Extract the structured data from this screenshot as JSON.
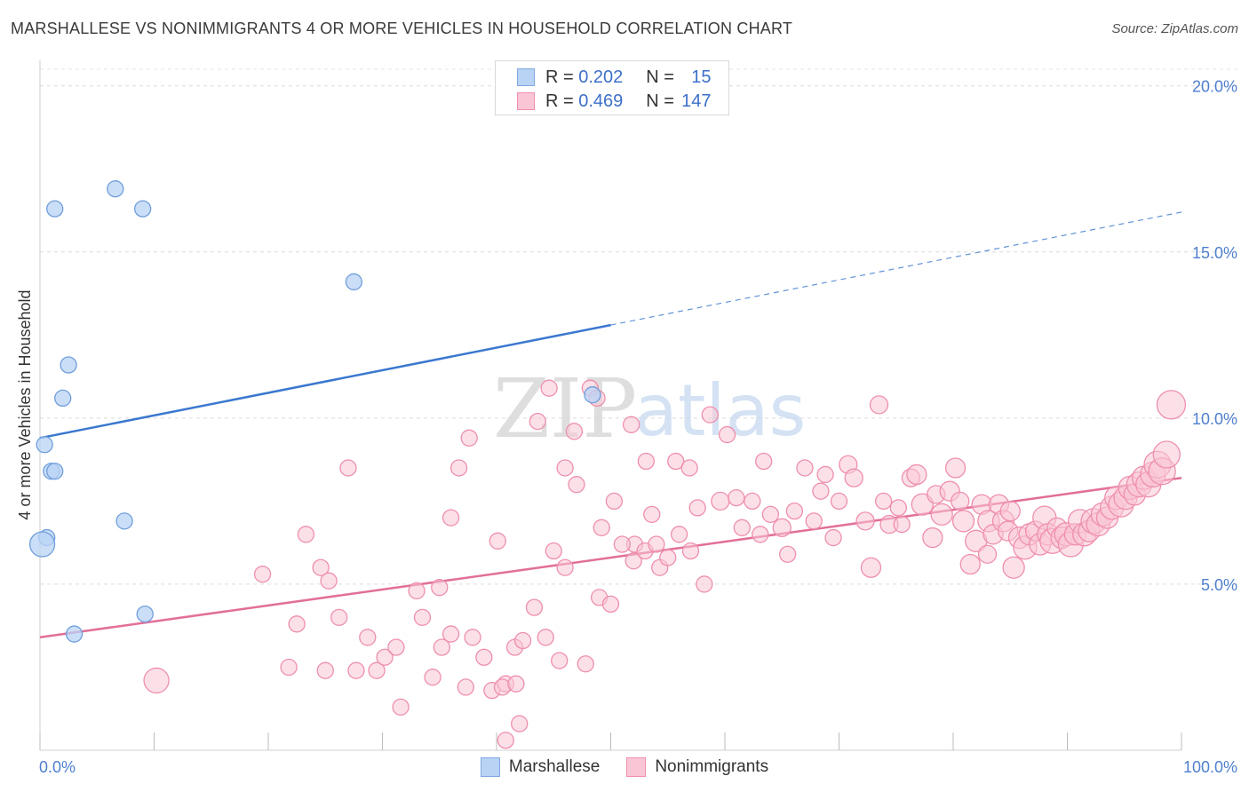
{
  "title": "MARSHALLESE VS NONIMMIGRANTS 4 OR MORE VEHICLES IN HOUSEHOLD CORRELATION CHART",
  "source": "Source: ZipAtlas.com",
  "watermark": {
    "zip": "ZIP",
    "atlas": "atlas"
  },
  "stats": [
    {
      "r_label": "R = ",
      "r_value": "0.202",
      "n_label": "N = ",
      "n_value": "15",
      "fill": "#b9d3f5",
      "stroke": "#7fa8e0"
    },
    {
      "r_label": "R = ",
      "r_value": "0.469",
      "n_label": "N = ",
      "n_value": "147",
      "fill": "#fac6d6",
      "stroke": "#ee8fad"
    }
  ],
  "legend": [
    {
      "label": "Marshallese",
      "fill": "#b9d3f5",
      "stroke": "#7fa8e0"
    },
    {
      "label": "Nonimmigrants",
      "fill": "#fac6d6",
      "stroke": "#ee8fad"
    }
  ],
  "chart_data": {
    "type": "scatter",
    "ylabel": "4 or more Vehicles in Household",
    "xlim": [
      0,
      100
    ],
    "ylim": [
      0,
      20.5
    ],
    "x_tick_labels": [
      "0.0%",
      "100.0%"
    ],
    "y_ticks": [
      5,
      10,
      15,
      20
    ],
    "y_tick_labels": [
      "5.0%",
      "10.0%",
      "15.0%",
      "20.0%"
    ],
    "grid": true,
    "colors": {
      "blue": "#3b78cf",
      "pink": "#e26f99",
      "tick_text": "#4f7fce"
    },
    "series": [
      {
        "name": "Marshallese",
        "fill": "#b9d3f5",
        "stroke": "#6f9edb",
        "trend": {
          "x0": 0,
          "y0": 9.4,
          "x1": 50,
          "y1": 12.8,
          "dash_x1": 100,
          "dash_y1": 16.2
        },
        "points": [
          [
            1.3,
            16.3,
            9
          ],
          [
            6.6,
            16.9,
            9
          ],
          [
            9.0,
            16.3,
            9
          ],
          [
            27.5,
            14.1,
            9
          ],
          [
            2.5,
            11.6,
            9
          ],
          [
            2.0,
            10.6,
            9
          ],
          [
            0.4,
            9.2,
            9
          ],
          [
            1.0,
            8.4,
            9
          ],
          [
            1.3,
            8.4,
            9
          ],
          [
            7.4,
            6.9,
            9
          ],
          [
            0.6,
            6.4,
            9
          ],
          [
            0.2,
            6.2,
            14
          ],
          [
            9.2,
            4.1,
            9
          ],
          [
            3.0,
            3.5,
            9
          ],
          [
            48.4,
            10.7,
            9
          ]
        ]
      },
      {
        "name": "Nonimmigrants",
        "fill": "#fac6d6",
        "stroke": "#ee8fad",
        "trend": {
          "x0": 0,
          "y0": 3.4,
          "x1": 100,
          "y1": 8.2
        },
        "points": [
          [
            10.2,
            2.1,
            14
          ],
          [
            27.0,
            8.5,
            9
          ],
          [
            36.7,
            8.5,
            9
          ],
          [
            37.6,
            9.4,
            9
          ],
          [
            40.1,
            6.3,
            9
          ],
          [
            36.0,
            7.0,
            9
          ],
          [
            43.6,
            9.9,
            9
          ],
          [
            44.6,
            10.9,
            9
          ],
          [
            46.8,
            9.6,
            9
          ],
          [
            48.2,
            10.9,
            9
          ],
          [
            48.8,
            10.6,
            9
          ],
          [
            46.0,
            8.5,
            9
          ],
          [
            50.3,
            7.5,
            9
          ],
          [
            49.2,
            6.7,
            9
          ],
          [
            51.8,
            9.8,
            9
          ],
          [
            53.1,
            8.7,
            9
          ],
          [
            53.6,
            7.1,
            9
          ],
          [
            52.1,
            6.2,
            9
          ],
          [
            54.3,
            5.5,
            9
          ],
          [
            55.7,
            8.7,
            9
          ],
          [
            56.9,
            8.5,
            9
          ],
          [
            57.6,
            7.3,
            9
          ],
          [
            58.2,
            5.0,
            9
          ],
          [
            58.7,
            10.1,
            9
          ],
          [
            59.6,
            7.5,
            10
          ],
          [
            60.2,
            9.5,
            9
          ],
          [
            61.0,
            7.6,
            9
          ],
          [
            61.5,
            6.7,
            9
          ],
          [
            62.4,
            7.5,
            9
          ],
          [
            63.1,
            6.5,
            9
          ],
          [
            63.4,
            8.7,
            9
          ],
          [
            64.0,
            7.1,
            9
          ],
          [
            65.0,
            6.7,
            10
          ],
          [
            65.5,
            5.9,
            9
          ],
          [
            66.1,
            7.2,
            9
          ],
          [
            67.0,
            8.5,
            9
          ],
          [
            67.8,
            6.9,
            9
          ],
          [
            68.4,
            7.8,
            9
          ],
          [
            68.8,
            8.3,
            9
          ],
          [
            69.5,
            6.4,
            9
          ],
          [
            70.0,
            7.5,
            9
          ],
          [
            70.8,
            8.6,
            10
          ],
          [
            71.3,
            8.2,
            10
          ],
          [
            72.3,
            6.9,
            10
          ],
          [
            72.8,
            5.5,
            11
          ],
          [
            73.5,
            10.4,
            10
          ],
          [
            73.9,
            7.5,
            9
          ],
          [
            74.4,
            6.8,
            10
          ],
          [
            75.2,
            7.3,
            9
          ],
          [
            75.5,
            6.8,
            9
          ],
          [
            76.3,
            8.2,
            10
          ],
          [
            76.8,
            8.3,
            11
          ],
          [
            77.3,
            7.4,
            12
          ],
          [
            78.2,
            6.4,
            11
          ],
          [
            78.5,
            7.7,
            10
          ],
          [
            79.0,
            7.1,
            12
          ],
          [
            79.7,
            7.8,
            11
          ],
          [
            80.2,
            8.5,
            11
          ],
          [
            80.6,
            7.5,
            10
          ],
          [
            80.9,
            6.9,
            12
          ],
          [
            81.5,
            5.6,
            11
          ],
          [
            82.0,
            6.3,
            12
          ],
          [
            82.5,
            7.4,
            11
          ],
          [
            83.1,
            6.9,
            12
          ],
          [
            83.5,
            6.5,
            11
          ],
          [
            84.0,
            7.4,
            11
          ],
          [
            84.4,
            6.9,
            12
          ],
          [
            84.8,
            6.6,
            11
          ],
          [
            85.3,
            5.5,
            12
          ],
          [
            85.8,
            6.4,
            12
          ],
          [
            86.3,
            6.1,
            13
          ],
          [
            86.7,
            6.5,
            12
          ],
          [
            87.2,
            6.6,
            11
          ],
          [
            87.6,
            6.2,
            12
          ],
          [
            88.0,
            7.0,
            13
          ],
          [
            88.3,
            6.5,
            12
          ],
          [
            88.7,
            6.3,
            14
          ],
          [
            89.1,
            6.7,
            11
          ],
          [
            89.5,
            6.4,
            12
          ],
          [
            89.9,
            6.5,
            13
          ],
          [
            90.3,
            6.2,
            14
          ],
          [
            90.7,
            6.5,
            12
          ],
          [
            91.1,
            6.9,
            13
          ],
          [
            91.5,
            6.5,
            13
          ],
          [
            91.9,
            6.6,
            12
          ],
          [
            92.3,
            6.9,
            14
          ],
          [
            92.7,
            6.8,
            13
          ],
          [
            93.1,
            7.1,
            13
          ],
          [
            93.5,
            7.0,
            12
          ],
          [
            93.9,
            7.3,
            13
          ],
          [
            94.3,
            7.6,
            13
          ],
          [
            94.7,
            7.4,
            14
          ],
          [
            95.1,
            7.6,
            13
          ],
          [
            95.5,
            7.9,
            13
          ],
          [
            95.9,
            7.7,
            12
          ],
          [
            96.3,
            8.0,
            14
          ],
          [
            96.7,
            8.2,
            13
          ],
          [
            97.1,
            8.0,
            14
          ],
          [
            97.5,
            8.3,
            14
          ],
          [
            97.9,
            8.6,
            15
          ],
          [
            98.3,
            8.4,
            15
          ],
          [
            98.7,
            8.9,
            15
          ],
          [
            99.1,
            10.4,
            16
          ],
          [
            85.0,
            7.2,
            11
          ],
          [
            83.0,
            5.9,
            10
          ],
          [
            31.6,
            1.3,
            9
          ],
          [
            28.7,
            3.4,
            9
          ],
          [
            29.5,
            2.4,
            9
          ],
          [
            30.2,
            2.8,
            9
          ],
          [
            31.2,
            3.1,
            9
          ],
          [
            33.5,
            4.0,
            9
          ],
          [
            34.4,
            2.2,
            9
          ],
          [
            35.2,
            3.1,
            9
          ],
          [
            36.0,
            3.5,
            9
          ],
          [
            37.3,
            1.9,
            9
          ],
          [
            37.9,
            3.4,
            9
          ],
          [
            38.9,
            2.8,
            9
          ],
          [
            39.6,
            1.8,
            9
          ],
          [
            40.8,
            2.0,
            9
          ],
          [
            41.6,
            3.1,
            9
          ],
          [
            42.3,
            3.3,
            9
          ],
          [
            43.3,
            4.3,
            9
          ],
          [
            44.3,
            3.4,
            9
          ],
          [
            45.5,
            2.7,
            9
          ],
          [
            47.8,
            2.6,
            9
          ],
          [
            40.8,
            0.3,
            9
          ],
          [
            42.0,
            0.8,
            9
          ],
          [
            40.5,
            1.9,
            9
          ],
          [
            41.7,
            2.0,
            9
          ],
          [
            25.0,
            2.4,
            9
          ],
          [
            25.3,
            5.1,
            9
          ],
          [
            24.6,
            5.5,
            9
          ],
          [
            23.3,
            6.5,
            9
          ],
          [
            26.2,
            4.0,
            9
          ],
          [
            27.7,
            2.4,
            9
          ],
          [
            22.5,
            3.8,
            9
          ],
          [
            21.8,
            2.5,
            9
          ],
          [
            19.5,
            5.3,
            9
          ],
          [
            33.0,
            4.8,
            9
          ],
          [
            35.0,
            4.9,
            9
          ],
          [
            45.0,
            6.0,
            9
          ],
          [
            46.0,
            5.5,
            9
          ],
          [
            47.0,
            8.0,
            9
          ],
          [
            49.0,
            4.6,
            9
          ],
          [
            50.0,
            4.4,
            9
          ],
          [
            51.0,
            6.2,
            9
          ],
          [
            52.0,
            5.7,
            9
          ],
          [
            53.0,
            6.0,
            9
          ],
          [
            54.0,
            6.2,
            9
          ],
          [
            55.0,
            5.8,
            9
          ],
          [
            56.0,
            6.5,
            9
          ],
          [
            57.0,
            6.0,
            9
          ]
        ]
      }
    ]
  }
}
